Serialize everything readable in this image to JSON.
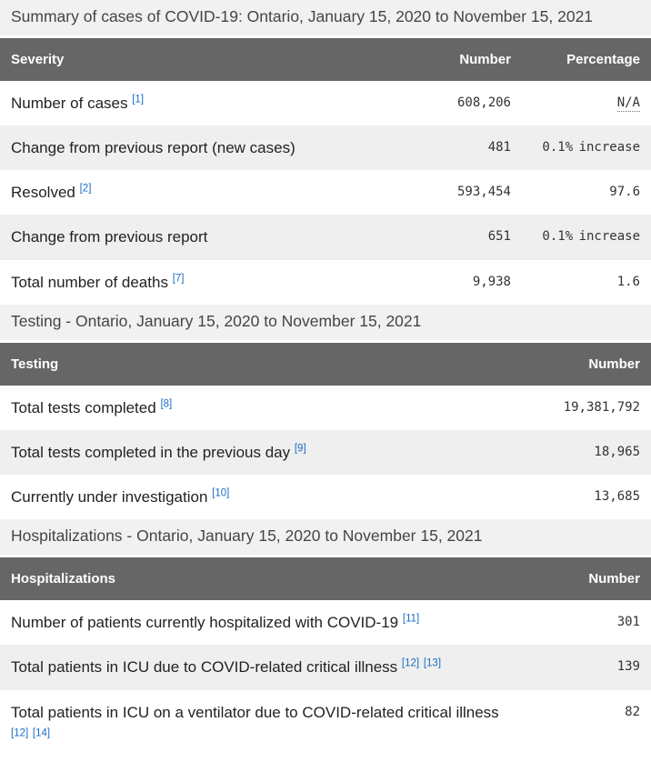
{
  "colors": {
    "table_header_bg": "#666666",
    "table_header_text": "#ffffff",
    "caption_bg": "#f1f1f1",
    "row_alt_bg": "#efefef",
    "footnote_link_blue": "#1a6bc4",
    "label_text": "#222222",
    "number_text": "#333333"
  },
  "severity_table": {
    "caption": "Summary of cases of COVID-19: Ontario, January 15, 2020 to November 15, 2021",
    "columns": [
      "Severity",
      "Number",
      "Percentage"
    ],
    "rows": [
      {
        "label": "Number of cases",
        "footnotes": [
          "[1]"
        ],
        "number": "608,206",
        "percentage": "N/A",
        "percentage_abbr": true
      },
      {
        "label": "Change from previous report (new cases)",
        "footnotes": [],
        "number": "481",
        "percentage": "0.1% increase",
        "percentage_abbr": false
      },
      {
        "label": "Resolved",
        "footnotes": [
          "[2]"
        ],
        "number": "593,454",
        "percentage": "97.6",
        "percentage_abbr": false
      },
      {
        "label": "Change from previous report",
        "footnotes": [],
        "number": "651",
        "percentage": "0.1% increase",
        "percentage_abbr": false
      },
      {
        "label": "Total number of deaths",
        "footnotes": [
          "[7]"
        ],
        "number": "9,938",
        "percentage": "1.6",
        "percentage_abbr": false
      }
    ]
  },
  "testing_table": {
    "caption": "Testing - Ontario, January 15, 2020 to November 15, 2021",
    "columns": [
      "Testing",
      "Number"
    ],
    "rows": [
      {
        "label": "Total tests completed",
        "footnotes": [
          "[8]"
        ],
        "number": "19,381,792"
      },
      {
        "label": "Total tests completed in the previous day",
        "footnotes": [
          "[9]"
        ],
        "number": "18,965"
      },
      {
        "label": "Currently under investigation",
        "footnotes": [
          "[10]"
        ],
        "number": "13,685"
      }
    ]
  },
  "hospitalizations_table": {
    "caption": "Hospitalizations - Ontario, January 15, 2020 to November 15, 2021",
    "columns": [
      "Hospitalizations",
      "Number"
    ],
    "rows": [
      {
        "label": "Number of patients currently hospitalized with COVID-19",
        "footnotes": [
          "[11]"
        ],
        "number": "301"
      },
      {
        "label": "Total patients in ICU due to COVID-related critical illness",
        "footnotes": [
          "[12]",
          "[13]"
        ],
        "number": "139"
      },
      {
        "label": "Total patients in ICU on a ventilator due to COVID-related critical illness",
        "footnotes": [
          "[12]",
          "[14]"
        ],
        "number": "82"
      }
    ]
  }
}
